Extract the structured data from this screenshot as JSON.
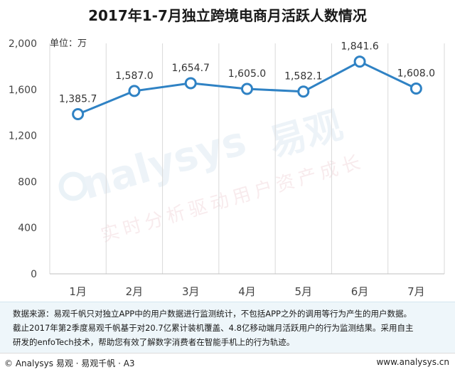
{
  "title": "2017年1-7月独立跨境电商月活跃人数情况",
  "unit_label": "单位：万",
  "watermark": {
    "brand": "nalysys",
    "brand_cn": "易观",
    "tagline": "实时分析驱动用户资产成长"
  },
  "source_lines": [
    "数据来源：易观千帆只对独立APP中的用户数据进行监测统计，不包括APP之外的调用等行为产生的用户数据。",
    "截止2017年第2季度易观千帆基于对20.7亿累计装机覆盖、4.8亿移动端月活跃用户的行为监测结果。采用自主",
    "研发的enfoTech技术，帮助您有效了解数字消费者在智能手机上的行为轨迹。"
  ],
  "footer": {
    "left": "© Analysys 易观 · 易观千帆 · A3",
    "right": "www.analysys.cn"
  },
  "colors": {
    "line": "#2f82c4",
    "grid": "#d9d9d9",
    "axis_text": "#444444",
    "label_text": "#333333"
  },
  "chart_data": {
    "type": "line",
    "title": "2017年1-7月独立跨境电商月活跃人数情况",
    "xlabel": "",
    "ylabel": "单位：万",
    "categories": [
      "1月",
      "2月",
      "3月",
      "4月",
      "5月",
      "6月",
      "7月"
    ],
    "values": [
      1385.7,
      1587.0,
      1654.7,
      1605.0,
      1582.1,
      1841.6,
      1608.0
    ],
    "data_labels": [
      "1,385.7",
      "1,587.0",
      "1,654.7",
      "1,605.0",
      "1,582.1",
      "1,841.6",
      "1,608.0"
    ],
    "yticks": [
      0,
      400,
      800,
      1200,
      1600,
      2000
    ],
    "ytick_labels": [
      "0",
      "400",
      "800",
      "1,200",
      "1,600",
      "2,000"
    ],
    "ylim": [
      0,
      2000
    ],
    "grid": "vertical",
    "legend": "none"
  }
}
